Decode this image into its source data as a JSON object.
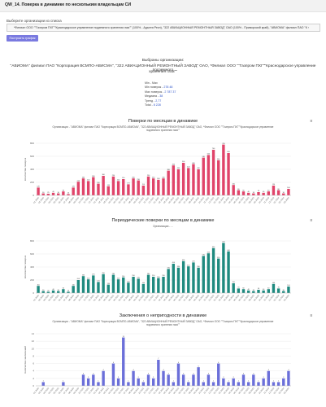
{
  "header": {
    "title": "QW_14. Поверка в динамике по нескольким владельцам СИ"
  },
  "org_select": {
    "label": "Выберите организации из списка",
    "value": "*Филиал ООО \"\"Газпром ПХГ\"\"Краснодарское управление подземного хранения газа\"\" (100% - Адыгея Респ), \"322 АВИАЦИОННЫЙ РЕМОНТНЫЙ ЗАВОД\" ОАО (100% - Приморский край), \"АВИОМА\" филиал ПАО \"К ›"
  },
  "build_button": {
    "label": "Построить график"
  },
  "selection": {
    "line1": "Выбраны организации:",
    "line2": "\"АВИОМА\" филиал ПАО \"Корпорация ВСМПО-АВИСМА\", \"322 АВИАЦИОННЫЙ РЕМОНТНЫЙ ЗАВОД\" ОАО, *Филиал ООО \"\"Газпром ПХГ\"\"Краснодарское управление подземного",
    "line3": "хранения газа\"\""
  },
  "stats": [
    {
      "label": "Min - Max",
      "value": ""
    },
    {
      "label": "Min поверок",
      "value": "278 48"
    },
    {
      "label": "Max поверок",
      "value": "2 787 37"
    },
    {
      "label": "Медиана",
      "value": "38"
    },
    {
      "label": "Тренд",
      "value": "2,77"
    },
    {
      "label": "Total",
      "value": "8 228"
    }
  ],
  "chart1": {
    "title": "Поверки по месяцам в динамике",
    "subtitle": "Организации - \"АВИОМА\" филиал ПАО \"Корпорация ВСМПО-АВИСМА\", \"322 АВИАЦИОННЫЙ РЕМОНТНЫЙ ЗАВОД\" ОАО, *Филиал ООО \"\"Газпром ПХГ\"\"Краснодарское управление подземного хранения газа\"\"",
    "menu_icon": "hamburger-icon"
  },
  "chart2": {
    "title": "Периодические поверки по месяцам в динамике",
    "subtitle": "Организации - ...",
    "menu_icon": "hamburger-icon"
  },
  "chart3": {
    "title": "Заключения о непригодности в динамике",
    "subtitle": "Организации - \"АВИОМА\" филиал ПАО \"Корпорация ВСМПО-АВИСМА\", \"322 АВИАЦИОННЫЙ РЕМОНТНЫЙ ЗАВОД\" ОАО, *Филиал ООО \"\"Газпром ПХГ\"\"Краснодарское управление подземного хранения газа\"\"",
    "menu_icon": "hamburger-icon"
  },
  "chart_data": [
    {
      "type": "bar",
      "title": "Поверки по месяцам в динамике",
      "color": "#e0446a",
      "ylim": [
        0,
        800
      ],
      "yticks": [
        0,
        200,
        400,
        600,
        800
      ],
      "ylabel": "Количество поверок",
      "categories": [
        "01.2020",
        "02.2020",
        "03.2020",
        "04.2020",
        "05.2020",
        "06.2020",
        "07.2020",
        "08.2020",
        "09.2020",
        "10.2020",
        "11.2020",
        "12.2020",
        "01.2021",
        "02.2021",
        "03.2021",
        "04.2021",
        "05.2021",
        "06.2021",
        "07.2021",
        "08.2021",
        "09.2021",
        "10.2021",
        "11.2021",
        "12.2021",
        "01.2022",
        "02.2022",
        "03.2022",
        "04.2022",
        "05.2022",
        "06.2022",
        "07.2022",
        "08.2022",
        "09.2022",
        "10.2022",
        "11.2022",
        "12.2022",
        "01.2023",
        "02.2023",
        "03.2023",
        "04.2023",
        "05.2023",
        "06.2023",
        "07.2023",
        "08.2023",
        "09.2023",
        "10.2023",
        "11.2023",
        "12.2023",
        "01.2024",
        "02.2024",
        "03.2024"
      ],
      "values": [
        120,
        30,
        25,
        40,
        30,
        60,
        20,
        120,
        210,
        260,
        220,
        280,
        180,
        300,
        140,
        290,
        220,
        250,
        170,
        260,
        230,
        150,
        290,
        260,
        240,
        260,
        380,
        460,
        400,
        500,
        420,
        480,
        400,
        580,
        620,
        700,
        540,
        780,
        650,
        160,
        80,
        60,
        40,
        30,
        50,
        40,
        60,
        150,
        80,
        30,
        100
      ]
    },
    {
      "type": "bar",
      "title": "Периодические поверки по месяцам в динамике",
      "color": "#1f8a7f",
      "ylim": [
        0,
        800
      ],
      "yticks": [
        0,
        200,
        400,
        600,
        800
      ],
      "ylabel": "Количество поверок",
      "categories": [
        "01.2020",
        "02.2020",
        "03.2020",
        "04.2020",
        "05.2020",
        "06.2020",
        "07.2020",
        "08.2020",
        "09.2020",
        "10.2020",
        "11.2020",
        "12.2020",
        "01.2021",
        "02.2021",
        "03.2021",
        "04.2021",
        "05.2021",
        "06.2021",
        "07.2021",
        "08.2021",
        "09.2021",
        "10.2021",
        "11.2021",
        "12.2021",
        "01.2022",
        "02.2022",
        "03.2022",
        "04.2022",
        "05.2022",
        "06.2022",
        "07.2022",
        "08.2022",
        "09.2022",
        "10.2022",
        "11.2022",
        "12.2022",
        "01.2023",
        "02.2023",
        "03.2023",
        "04.2023",
        "05.2023",
        "06.2023",
        "07.2023",
        "08.2023",
        "09.2023",
        "10.2023",
        "11.2023",
        "12.2023",
        "01.2024",
        "02.2024",
        "03.2024"
      ],
      "values": [
        110,
        30,
        20,
        40,
        30,
        60,
        20,
        110,
        200,
        260,
        210,
        270,
        170,
        290,
        130,
        280,
        210,
        240,
        160,
        250,
        220,
        140,
        280,
        250,
        230,
        250,
        370,
        450,
        390,
        490,
        410,
        470,
        390,
        570,
        610,
        690,
        530,
        770,
        640,
        150,
        70,
        60,
        40,
        30,
        50,
        40,
        60,
        140,
        70,
        30,
        100
      ]
    },
    {
      "type": "bar",
      "title": "Заключения о непригодности в динамике",
      "color": "#6b6fd9",
      "ylim": [
        0,
        14
      ],
      "yticks": [
        0,
        2,
        4,
        6,
        8,
        10,
        12,
        14
      ],
      "ylabel": "Количество заключений",
      "categories": [
        "01.2020",
        "02.2020",
        "03.2020",
        "04.2020",
        "05.2020",
        "06.2020",
        "07.2020",
        "08.2020",
        "09.2020",
        "10.2020",
        "11.2020",
        "12.2020",
        "01.2021",
        "02.2021",
        "03.2021",
        "04.2021",
        "05.2021",
        "06.2021",
        "07.2021",
        "08.2021",
        "09.2021",
        "10.2021",
        "11.2021",
        "12.2021",
        "01.2022",
        "02.2022",
        "03.2022",
        "04.2022",
        "05.2022",
        "06.2022",
        "07.2022",
        "08.2022",
        "09.2022",
        "10.2022",
        "11.2022",
        "12.2022",
        "01.2023",
        "02.2023",
        "03.2023",
        "04.2023",
        "05.2023",
        "06.2023",
        "07.2023",
        "08.2023",
        "09.2023",
        "10.2023",
        "11.2023",
        "12.2023",
        "01.2024",
        "02.2024",
        "03.2024"
      ],
      "values": [
        0,
        1,
        0,
        0,
        0,
        1,
        0,
        0,
        0,
        3,
        2,
        3,
        1,
        4,
        0,
        6,
        2,
        13,
        1,
        4,
        2,
        1,
        3,
        2,
        7,
        4,
        3,
        1,
        6,
        3,
        1,
        3,
        5,
        1,
        3,
        1,
        6,
        2,
        1,
        2,
        1,
        3,
        1,
        3,
        1,
        2,
        4,
        1,
        1,
        2,
        4
      ]
    }
  ]
}
